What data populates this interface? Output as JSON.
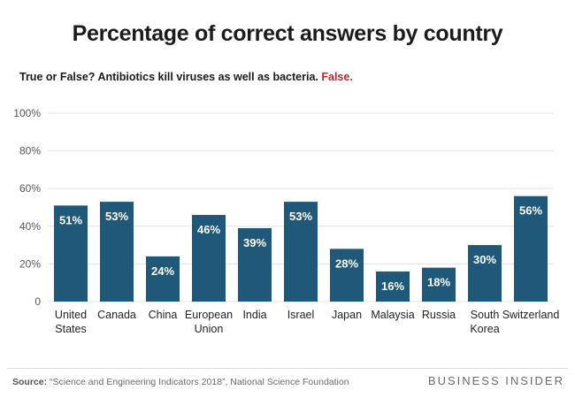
{
  "chart_data": {
    "type": "bar",
    "title": "Percentage of correct answers by country",
    "subtitle_question": "True or False? Antibiotics kill viruses as well as bacteria.",
    "subtitle_answer": "False.",
    "categories": [
      [
        "United",
        "States"
      ],
      [
        "Canada"
      ],
      [
        "China"
      ],
      [
        "European",
        "Union"
      ],
      [
        "India"
      ],
      [
        "Israel"
      ],
      [
        "Japan"
      ],
      [
        "Malaysia"
      ],
      [
        "Russia"
      ],
      [
        "South",
        "Korea"
      ],
      [
        "Switzerland"
      ]
    ],
    "values": [
      51,
      53,
      24,
      46,
      39,
      53,
      28,
      16,
      18,
      30,
      56
    ],
    "value_labels": [
      "51%",
      "53%",
      "24%",
      "46%",
      "39%",
      "53%",
      "28%",
      "16%",
      "18%",
      "30%",
      "56%"
    ],
    "yticks": [
      0,
      20,
      40,
      60,
      80,
      100
    ],
    "ytick_labels": [
      "0",
      "20%",
      "40%",
      "60%",
      "80%",
      "100%"
    ],
    "ylim": [
      0,
      100
    ],
    "xlabel": "",
    "ylabel": "",
    "grid": true,
    "bar_color": "#1f5878"
  },
  "footer": {
    "source_label": "Source:",
    "source_text": "“Science and Engineering Indicators 2018”, National Science Foundation",
    "brand": "BUSINESS INSIDER"
  },
  "colors": {
    "accent": "#c0272d",
    "bar": "#1f5878",
    "grid": "#e3e3e3"
  }
}
